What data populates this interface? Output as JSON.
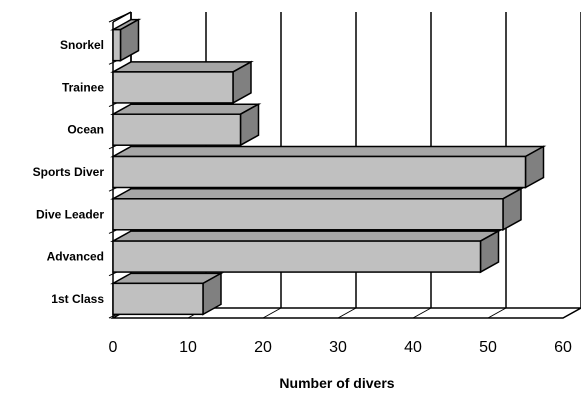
{
  "chart_data": {
    "type": "bar",
    "orientation": "horizontal",
    "style": "3d",
    "categories": [
      "Snorkel",
      "Trainee",
      "Ocean",
      "Sports Diver",
      "Dive Leader",
      "Advanced",
      "1st Class"
    ],
    "values": [
      1,
      16,
      17,
      55,
      52,
      49,
      12
    ],
    "xlabel": "Number of divers",
    "ylabel": "",
    "xlim": [
      0,
      60
    ],
    "xticks": [
      "0",
      "10",
      "20",
      "30",
      "40",
      "50",
      "60"
    ],
    "grid": "vertical",
    "colors": {
      "bar_face": "#c0c0c0",
      "bar_top": "#a6a6a6",
      "bar_side": "#808080",
      "wall": "#ffffff",
      "line": "#000000"
    }
  }
}
